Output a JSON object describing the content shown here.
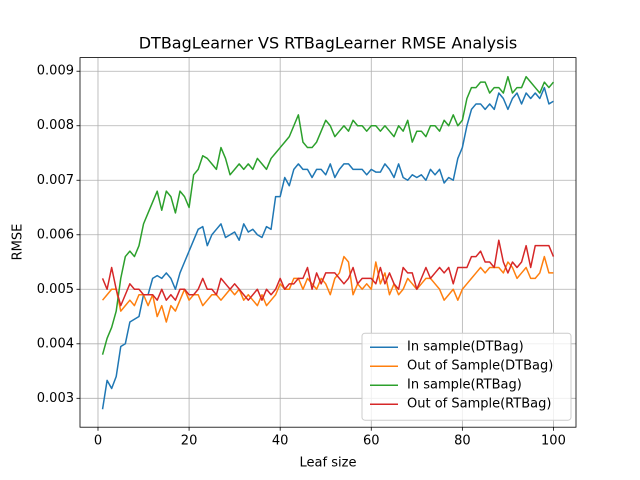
{
  "chart_data": {
    "type": "line",
    "title": "DTBagLearner VS RTBagLearner RMSE Analysis",
    "xlabel": "Leaf size",
    "ylabel": "RMSE",
    "x": [
      1,
      2,
      3,
      4,
      5,
      6,
      7,
      8,
      9,
      10,
      11,
      12,
      13,
      14,
      15,
      16,
      17,
      18,
      19,
      20,
      21,
      22,
      23,
      24,
      25,
      26,
      27,
      28,
      29,
      30,
      31,
      32,
      33,
      34,
      35,
      36,
      37,
      38,
      39,
      40,
      41,
      42,
      43,
      44,
      45,
      46,
      47,
      48,
      49,
      50,
      51,
      52,
      53,
      54,
      55,
      56,
      57,
      58,
      59,
      60,
      61,
      62,
      63,
      64,
      65,
      66,
      67,
      68,
      69,
      70,
      71,
      72,
      73,
      74,
      75,
      76,
      77,
      78,
      79,
      80,
      81,
      82,
      83,
      84,
      85,
      86,
      87,
      88,
      89,
      90,
      91,
      92,
      93,
      94,
      95,
      96,
      97,
      98,
      99,
      100
    ],
    "series": [
      {
        "name": "In sample(DTBag)",
        "color": "#1f77b4",
        "values": [
          0.0028,
          0.00333,
          0.00318,
          0.0034,
          0.00395,
          0.004,
          0.0044,
          0.00445,
          0.0045,
          0.0049,
          0.0049,
          0.0052,
          0.00525,
          0.0052,
          0.0053,
          0.0052,
          0.005,
          0.0053,
          0.0055,
          0.0057,
          0.0059,
          0.0061,
          0.00615,
          0.0058,
          0.006,
          0.0061,
          0.0062,
          0.00595,
          0.006,
          0.00605,
          0.0059,
          0.0062,
          0.00605,
          0.0061,
          0.006,
          0.00595,
          0.00615,
          0.0061,
          0.0067,
          0.0067,
          0.00705,
          0.0069,
          0.0072,
          0.0073,
          0.0072,
          0.0072,
          0.00705,
          0.0072,
          0.0072,
          0.0071,
          0.0073,
          0.00705,
          0.0072,
          0.0073,
          0.0073,
          0.0072,
          0.0072,
          0.0072,
          0.0071,
          0.0072,
          0.00715,
          0.00715,
          0.0073,
          0.0072,
          0.00705,
          0.0073,
          0.00705,
          0.007,
          0.0071,
          0.00705,
          0.0071,
          0.007,
          0.0072,
          0.0071,
          0.0072,
          0.00695,
          0.00705,
          0.007,
          0.0074,
          0.0076,
          0.008,
          0.0083,
          0.0084,
          0.0084,
          0.0083,
          0.0084,
          0.0083,
          0.0086,
          0.0085,
          0.0083,
          0.0085,
          0.0086,
          0.0084,
          0.0086,
          0.0085,
          0.0086,
          0.0085,
          0.0087,
          0.0084,
          0.00845
        ]
      },
      {
        "name": "Out of Sample(DTBag)",
        "color": "#ff7f0e",
        "values": [
          0.0048,
          0.0049,
          0.005,
          0.005,
          0.0046,
          0.0047,
          0.0048,
          0.0047,
          0.0049,
          0.0049,
          0.0047,
          0.0049,
          0.0045,
          0.0047,
          0.0044,
          0.0047,
          0.0046,
          0.0048,
          0.005,
          0.0048,
          0.0049,
          0.0049,
          0.0047,
          0.0048,
          0.0049,
          0.0049,
          0.0048,
          0.0049,
          0.005,
          0.0049,
          0.005,
          0.0048,
          0.0049,
          0.0048,
          0.0047,
          0.0049,
          0.0047,
          0.0048,
          0.0049,
          0.0051,
          0.005,
          0.005,
          0.0052,
          0.0052,
          0.005,
          0.0052,
          0.0051,
          0.005,
          0.0052,
          0.0051,
          0.0049,
          0.0052,
          0.0053,
          0.0056,
          0.0055,
          0.0049,
          0.0051,
          0.005,
          0.0051,
          0.005,
          0.0055,
          0.0051,
          0.0053,
          0.0049,
          0.0051,
          0.0049,
          0.005,
          0.0052,
          0.0051,
          0.005,
          0.0051,
          0.0052,
          0.0052,
          0.0051,
          0.005,
          0.0048,
          0.0049,
          0.005,
          0.0048,
          0.005,
          0.0051,
          0.0052,
          0.0053,
          0.0054,
          0.0053,
          0.0054,
          0.0054,
          0.0054,
          0.0053,
          0.0055,
          0.0054,
          0.0052,
          0.0053,
          0.0054,
          0.0052,
          0.0052,
          0.0053,
          0.0056,
          0.0053,
          0.0053
        ]
      },
      {
        "name": "In sample(RTBag)",
        "color": "#2ca02c",
        "values": [
          0.0038,
          0.0041,
          0.0043,
          0.0046,
          0.0052,
          0.0056,
          0.0057,
          0.0056,
          0.0058,
          0.0062,
          0.0064,
          0.0066,
          0.0068,
          0.00645,
          0.0068,
          0.0067,
          0.0064,
          0.0068,
          0.0067,
          0.0065,
          0.0071,
          0.0072,
          0.00745,
          0.0074,
          0.0073,
          0.0072,
          0.0076,
          0.0074,
          0.0071,
          0.0072,
          0.0073,
          0.0072,
          0.0073,
          0.0072,
          0.0074,
          0.0073,
          0.0072,
          0.0074,
          0.0075,
          0.0076,
          0.0077,
          0.0078,
          0.008,
          0.0082,
          0.0077,
          0.0076,
          0.0076,
          0.0077,
          0.0079,
          0.0081,
          0.008,
          0.0078,
          0.0079,
          0.008,
          0.0079,
          0.0081,
          0.008,
          0.008,
          0.0079,
          0.008,
          0.008,
          0.0079,
          0.008,
          0.0079,
          0.0078,
          0.008,
          0.0079,
          0.0081,
          0.0077,
          0.0079,
          0.0079,
          0.0078,
          0.008,
          0.008,
          0.0079,
          0.0081,
          0.008,
          0.0082,
          0.008,
          0.0081,
          0.0085,
          0.0087,
          0.0087,
          0.0088,
          0.0088,
          0.0086,
          0.0087,
          0.0087,
          0.0086,
          0.0089,
          0.0086,
          0.0087,
          0.0087,
          0.0089,
          0.0088,
          0.0087,
          0.0086,
          0.0088,
          0.0087,
          0.0088
        ]
      },
      {
        "name": "Out of Sample(RTBag)",
        "color": "#d62728",
        "values": [
          0.0052,
          0.005,
          0.0054,
          0.005,
          0.0047,
          0.0049,
          0.0051,
          0.005,
          0.005,
          0.0049,
          0.0049,
          0.0049,
          0.0048,
          0.005,
          0.0048,
          0.0049,
          0.0048,
          0.005,
          0.005,
          0.0049,
          0.0049,
          0.005,
          0.0052,
          0.005,
          0.005,
          0.0049,
          0.0052,
          0.0051,
          0.005,
          0.0051,
          0.005,
          0.0049,
          0.0048,
          0.0049,
          0.005,
          0.0048,
          0.005,
          0.0049,
          0.005,
          0.0052,
          0.005,
          0.0051,
          0.0051,
          0.0052,
          0.0052,
          0.0054,
          0.005,
          0.0053,
          0.0051,
          0.0053,
          0.0053,
          0.0053,
          0.0052,
          0.0051,
          0.0052,
          0.0054,
          0.0051,
          0.0052,
          0.0052,
          0.0052,
          0.0051,
          0.0054,
          0.0051,
          0.0053,
          0.0051,
          0.005,
          0.0054,
          0.0053,
          0.0053,
          0.005,
          0.0052,
          0.0054,
          0.0052,
          0.0053,
          0.0054,
          0.0053,
          0.0054,
          0.0051,
          0.0054,
          0.0054,
          0.0054,
          0.0056,
          0.0056,
          0.0057,
          0.0055,
          0.0055,
          0.0054,
          0.0059,
          0.0055,
          0.0053,
          0.0055,
          0.0054,
          0.0055,
          0.0058,
          0.0054,
          0.0058,
          0.0058,
          0.0058,
          0.0058,
          0.0056
        ]
      }
    ],
    "xlim": [
      -3.95,
      104.95
    ],
    "xticks": [
      0,
      20,
      40,
      60,
      80,
      100
    ],
    "ylim": [
      0.00247,
      0.00925
    ],
    "yticks": [
      0.003,
      0.004,
      0.005,
      0.006,
      0.007,
      0.008,
      0.009
    ],
    "grid": true,
    "legend": "lower right"
  }
}
